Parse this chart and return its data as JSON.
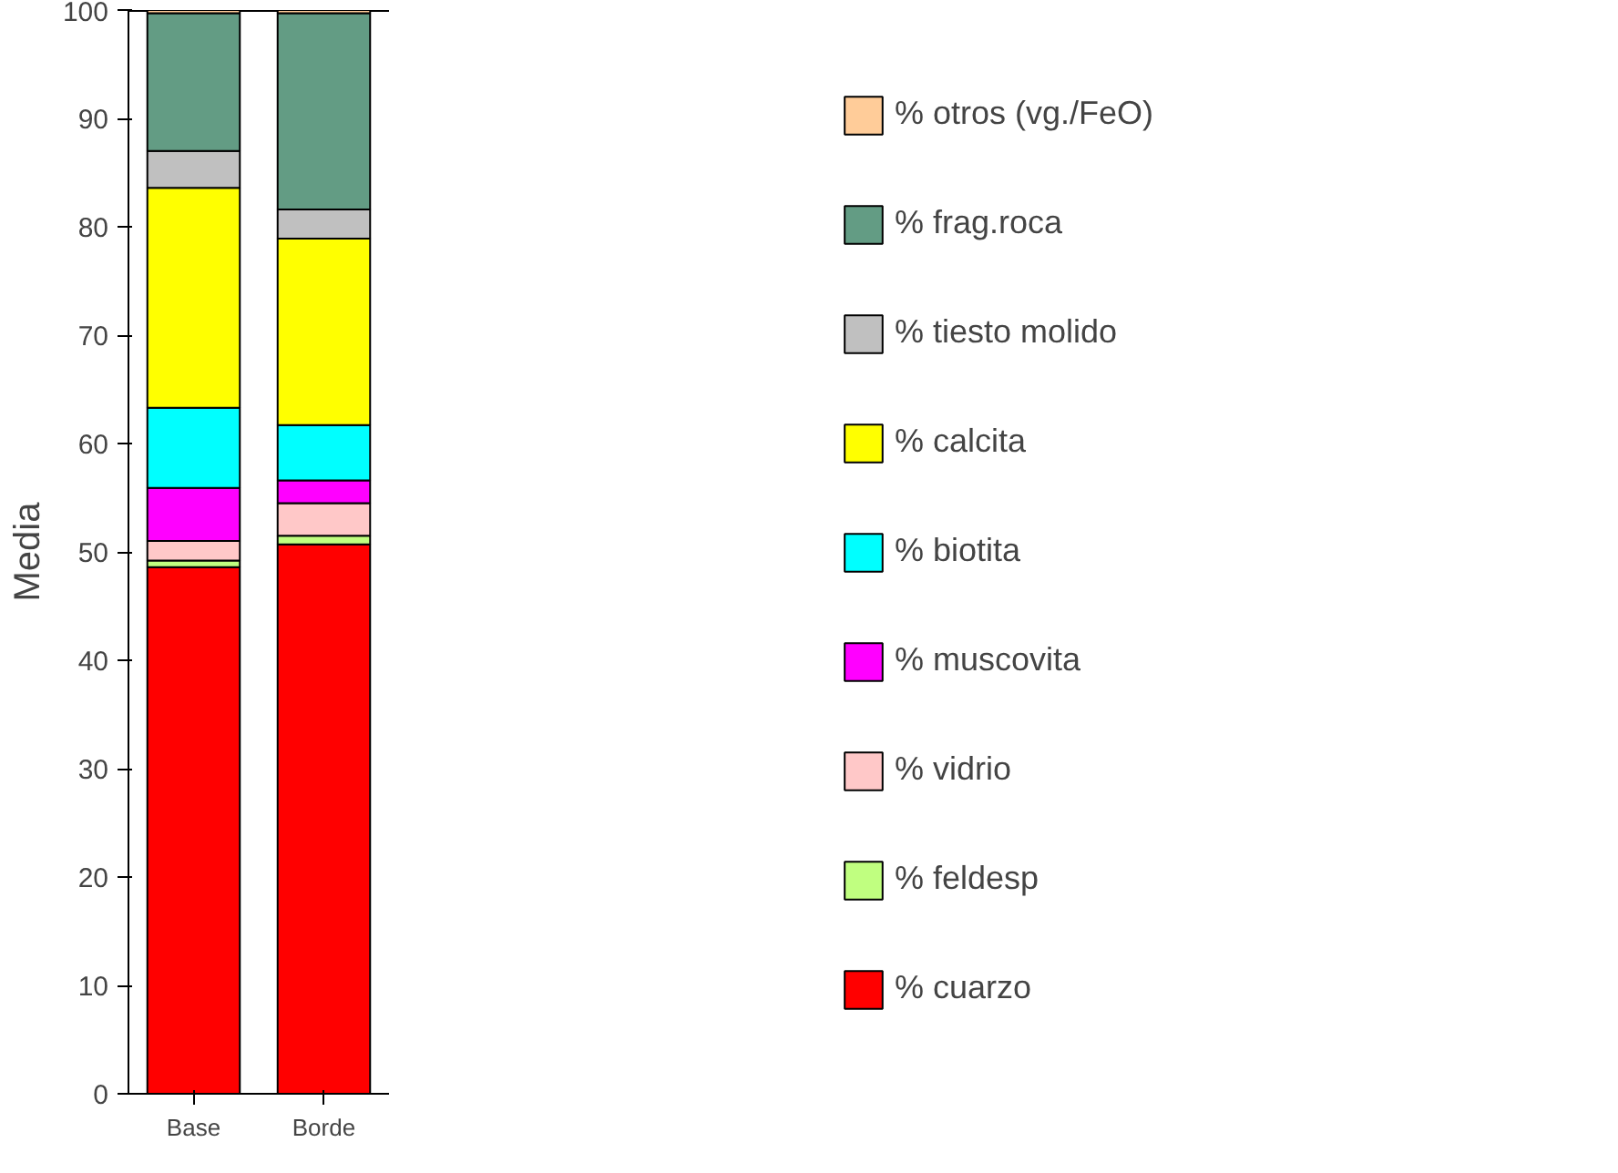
{
  "chart_data": {
    "type": "bar",
    "stacked": true,
    "ylabel": "Media",
    "categories": [
      "Base",
      "Borde"
    ],
    "ylim": [
      0,
      100
    ],
    "yticks": [
      0,
      10,
      20,
      30,
      40,
      50,
      60,
      70,
      80,
      90,
      100
    ],
    "grid": false,
    "legend": "right",
    "series": [
      {
        "name": "% cuarzo",
        "color": "#ff0000",
        "values": [
          48.6,
          50.7
        ]
      },
      {
        "name": "% feldesp",
        "color": "#c0ff80",
        "values": [
          0.6,
          0.8
        ]
      },
      {
        "name": "% vidrio",
        "color": "#ffc8c8",
        "values": [
          1.8,
          3.0
        ]
      },
      {
        "name": "% muscovita",
        "color": "#ff00ff",
        "values": [
          4.9,
          2.1
        ]
      },
      {
        "name": "% biotita",
        "color": "#00ffff",
        "values": [
          7.4,
          5.1
        ]
      },
      {
        "name": "% calcita",
        "color": "#ffff00",
        "values": [
          20.3,
          17.2
        ]
      },
      {
        "name": "% tiesto molido",
        "color": "#c0c0c0",
        "values": [
          3.4,
          2.7
        ]
      },
      {
        "name": "% frag.roca",
        "color": "#639c84",
        "values": [
          12.7,
          18.1
        ]
      },
      {
        "name": "% otros (vg./FeO)",
        "color": "#ffcc99",
        "values": [
          0.3,
          0.3
        ]
      }
    ]
  }
}
